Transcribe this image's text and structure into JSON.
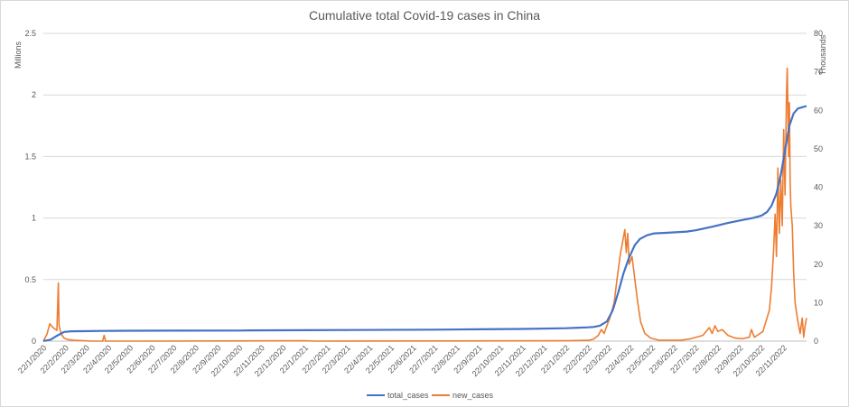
{
  "colors": {
    "total_cases": "#4472c4",
    "new_cases": "#ed7d31",
    "grid": "#d9d9d9",
    "text": "#595959"
  },
  "chart_data": {
    "type": "line",
    "title": "Cumulative total Covid-19 cases in China",
    "ylabel": "Millions",
    "y2label": "Thousands",
    "xlabel": "",
    "grid": true,
    "legend_position": "bottom",
    "ylim": [
      0,
      2.5
    ],
    "yticks": [
      "0",
      "0.5",
      "1",
      "1.5",
      "2",
      "2.5"
    ],
    "y2lim": [
      0,
      80
    ],
    "y2ticks": [
      "0",
      "10",
      "20",
      "30",
      "40",
      "50",
      "60",
      "70",
      "80"
    ],
    "x_tick_labels": [
      "22/1/2020",
      "22/2/2020",
      "22/3/2020",
      "22/4/2020",
      "22/5/2020",
      "22/6/2020",
      "22/7/2020",
      "22/8/2020",
      "22/9/2020",
      "22/10/2020",
      "22/11/2020",
      "22/12/2020",
      "22/1/2021",
      "22/2/2021",
      "22/3/2021",
      "22/4/2021",
      "22/5/2021",
      "22/6/2021",
      "22/7/2021",
      "22/8/2021",
      "22/9/2021",
      "22/10/2021",
      "22/11/2021",
      "22/12/2021",
      "22/1/2022",
      "22/2/2022",
      "22/3/2022",
      "22/4/2022",
      "22/5/2022",
      "22/6/2022",
      "22/7/2022",
      "22/8/2022",
      "22/9/2022",
      "22/10/2022",
      "22/11/2022"
    ],
    "x_range": [
      "2020-01-22",
      "2022-12-24"
    ],
    "series": [
      {
        "name": "total_cases",
        "axis": "left",
        "color": "#4472c4",
        "points": [
          [
            "2020-01-22",
            0.0006
          ],
          [
            "2020-02-01",
            0.012
          ],
          [
            "2020-02-10",
            0.043
          ],
          [
            "2020-02-20",
            0.075
          ],
          [
            "2020-03-01",
            0.08
          ],
          [
            "2020-03-15",
            0.081
          ],
          [
            "2020-04-15",
            0.083
          ],
          [
            "2020-05-22",
            0.084
          ],
          [
            "2020-07-22",
            0.085
          ],
          [
            "2020-10-22",
            0.086
          ],
          [
            "2020-11-05",
            0.087
          ],
          [
            "2021-01-22",
            0.089
          ],
          [
            "2021-03-22",
            0.09
          ],
          [
            "2021-07-22",
            0.093
          ],
          [
            "2021-09-22",
            0.096
          ],
          [
            "2021-11-22",
            0.099
          ],
          [
            "2022-01-22",
            0.105
          ],
          [
            "2022-02-22",
            0.112
          ],
          [
            "2022-03-01",
            0.115
          ],
          [
            "2022-03-10",
            0.125
          ],
          [
            "2022-03-20",
            0.16
          ],
          [
            "2022-03-28",
            0.25
          ],
          [
            "2022-04-05",
            0.4
          ],
          [
            "2022-04-12",
            0.55
          ],
          [
            "2022-04-20",
            0.68
          ],
          [
            "2022-04-28",
            0.78
          ],
          [
            "2022-05-05",
            0.83
          ],
          [
            "2022-05-15",
            0.86
          ],
          [
            "2022-05-25",
            0.875
          ],
          [
            "2022-06-10",
            0.88
          ],
          [
            "2022-07-10",
            0.89
          ],
          [
            "2022-07-22",
            0.9
          ],
          [
            "2022-08-15",
            0.93
          ],
          [
            "2022-09-05",
            0.96
          ],
          [
            "2022-09-22",
            0.98
          ],
          [
            "2022-10-10",
            1.0
          ],
          [
            "2022-10-22",
            1.02
          ],
          [
            "2022-10-30",
            1.05
          ],
          [
            "2022-11-05",
            1.1
          ],
          [
            "2022-11-12",
            1.2
          ],
          [
            "2022-11-18",
            1.35
          ],
          [
            "2022-11-24",
            1.55
          ],
          [
            "2022-11-30",
            1.75
          ],
          [
            "2022-12-06",
            1.85
          ],
          [
            "2022-12-12",
            1.89
          ],
          [
            "2022-12-24",
            1.91
          ]
        ]
      },
      {
        "name": "new_cases",
        "axis": "right",
        "color": "#ed7d31",
        "points": [
          [
            "2020-01-22",
            0
          ],
          [
            "2020-01-27",
            1.8
          ],
          [
            "2020-01-31",
            4.5
          ],
          [
            "2020-02-03",
            3.8
          ],
          [
            "2020-02-06",
            3.3
          ],
          [
            "2020-02-10",
            2.8
          ],
          [
            "2020-02-12",
            15.1
          ],
          [
            "2020-02-13",
            4
          ],
          [
            "2020-02-16",
            1.8
          ],
          [
            "2020-02-20",
            0.8
          ],
          [
            "2020-02-25",
            0.4
          ],
          [
            "2020-03-05",
            0.2
          ],
          [
            "2020-04-01",
            0
          ],
          [
            "2020-04-14",
            0
          ],
          [
            "2020-04-16",
            1.5
          ],
          [
            "2020-04-18",
            0
          ],
          [
            "2020-06-01",
            0
          ],
          [
            "2021-01-22",
            0.1
          ],
          [
            "2021-02-05",
            0
          ],
          [
            "2022-01-22",
            0.1
          ],
          [
            "2022-02-22",
            0.2
          ],
          [
            "2022-03-01",
            0.5
          ],
          [
            "2022-03-08",
            1.5
          ],
          [
            "2022-03-12",
            3
          ],
          [
            "2022-03-16",
            2
          ],
          [
            "2022-03-20",
            4
          ],
          [
            "2022-03-24",
            6
          ],
          [
            "2022-03-30",
            10
          ],
          [
            "2022-04-03",
            16
          ],
          [
            "2022-04-08",
            23
          ],
          [
            "2022-04-12",
            27
          ],
          [
            "2022-04-14",
            29
          ],
          [
            "2022-04-16",
            23
          ],
          [
            "2022-04-18",
            28
          ],
          [
            "2022-04-20",
            20
          ],
          [
            "2022-04-24",
            22
          ],
          [
            "2022-04-28",
            16
          ],
          [
            "2022-05-02",
            10
          ],
          [
            "2022-05-06",
            5
          ],
          [
            "2022-05-12",
            2
          ],
          [
            "2022-05-20",
            0.8
          ],
          [
            "2022-06-01",
            0.2
          ],
          [
            "2022-07-01",
            0.2
          ],
          [
            "2022-07-15",
            0.6
          ],
          [
            "2022-08-01",
            1.5
          ],
          [
            "2022-08-10",
            3.5
          ],
          [
            "2022-08-14",
            2
          ],
          [
            "2022-08-18",
            4
          ],
          [
            "2022-08-22",
            2.5
          ],
          [
            "2022-08-28",
            3
          ],
          [
            "2022-09-05",
            1.5
          ],
          [
            "2022-09-15",
            0.8
          ],
          [
            "2022-09-25",
            0.6
          ],
          [
            "2022-10-05",
            1
          ],
          [
            "2022-10-08",
            3
          ],
          [
            "2022-10-12",
            1
          ],
          [
            "2022-10-20",
            2
          ],
          [
            "2022-10-24",
            2.5
          ],
          [
            "2022-10-28",
            5
          ],
          [
            "2022-11-02",
            8
          ],
          [
            "2022-11-05",
            14
          ],
          [
            "2022-11-08",
            24
          ],
          [
            "2022-11-10",
            33
          ],
          [
            "2022-11-12",
            22
          ],
          [
            "2022-11-14",
            45
          ],
          [
            "2022-11-16",
            28
          ],
          [
            "2022-11-18",
            42
          ],
          [
            "2022-11-20",
            30
          ],
          [
            "2022-11-22",
            55
          ],
          [
            "2022-11-24",
            38
          ],
          [
            "2022-11-26",
            64
          ],
          [
            "2022-11-27",
            71
          ],
          [
            "2022-11-28",
            60
          ],
          [
            "2022-11-29",
            48
          ],
          [
            "2022-11-30",
            62
          ],
          [
            "2022-12-01",
            42
          ],
          [
            "2022-12-02",
            35
          ],
          [
            "2022-12-04",
            30
          ],
          [
            "2022-12-06",
            18
          ],
          [
            "2022-12-08",
            10
          ],
          [
            "2022-12-12",
            5
          ],
          [
            "2022-12-15",
            2
          ],
          [
            "2022-12-18",
            6
          ],
          [
            "2022-12-20",
            1
          ],
          [
            "2022-12-22",
            4
          ],
          [
            "2022-12-24",
            6
          ]
        ]
      }
    ]
  }
}
